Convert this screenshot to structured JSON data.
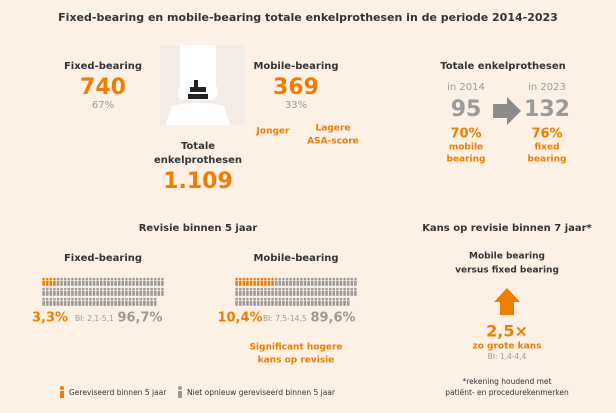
{
  "title": "Fixed-bearing en mobile-bearing totale enkelprothesen in de periode 2014-2023",
  "totals": {
    "fixed": {
      "label": "Fixed-bearing",
      "count": "740",
      "share": "67%"
    },
    "mobile": {
      "label": "Mobile-bearing",
      "count": "369",
      "share": "33%",
      "traits": [
        "Jonger",
        "Lagere",
        "ASA-score"
      ]
    },
    "total": {
      "label": [
        "Totale",
        "enkelprothesen"
      ],
      "count": "1.109"
    }
  },
  "trend": {
    "title": "Totale enkelprothesen",
    "start": {
      "year": "in 2014",
      "count": "95",
      "share": "70%",
      "type": [
        "mobile",
        "bearing"
      ]
    },
    "end": {
      "year": "in 2023",
      "count": "132",
      "share": "76%",
      "type": [
        "fixed",
        "bearing"
      ]
    }
  },
  "revision": {
    "title": "Revisie binnen 5 jaar",
    "groups": [
      {
        "label": "Fixed-bearing",
        "revised": {
          "value": 3.3,
          "label": "3,3%"
        },
        "ci": "BI: 2,1-5,1",
        "not_revised": {
          "value": 96.7,
          "label": "96,7%"
        }
      },
      {
        "label": "Mobile-bearing",
        "revised": {
          "value": 10.4,
          "label": "10,4%"
        },
        "ci": "BI: 7,5-14,5",
        "not_revised": {
          "value": 89.6,
          "label": "89,6%"
        },
        "note": [
          "Significant hogere",
          "kans op revisie"
        ]
      }
    ],
    "legend": [
      "Gereviseerd binnen 5 jaar",
      "Niet opnieuw gereviseerd binnen 5 jaar"
    ]
  },
  "risk": {
    "title": "Kans op revisie binnen 7 jaar*",
    "subtitle": [
      "Mobile bearing",
      "versus fixed bearing"
    ],
    "ratio": "2,5×",
    "ratio_text": "zo grote kans",
    "ci": "BI: 1,4-4,4",
    "footnote": [
      "*rekening houdend met",
      "patiënt- en procedurekenmerken"
    ]
  }
}
